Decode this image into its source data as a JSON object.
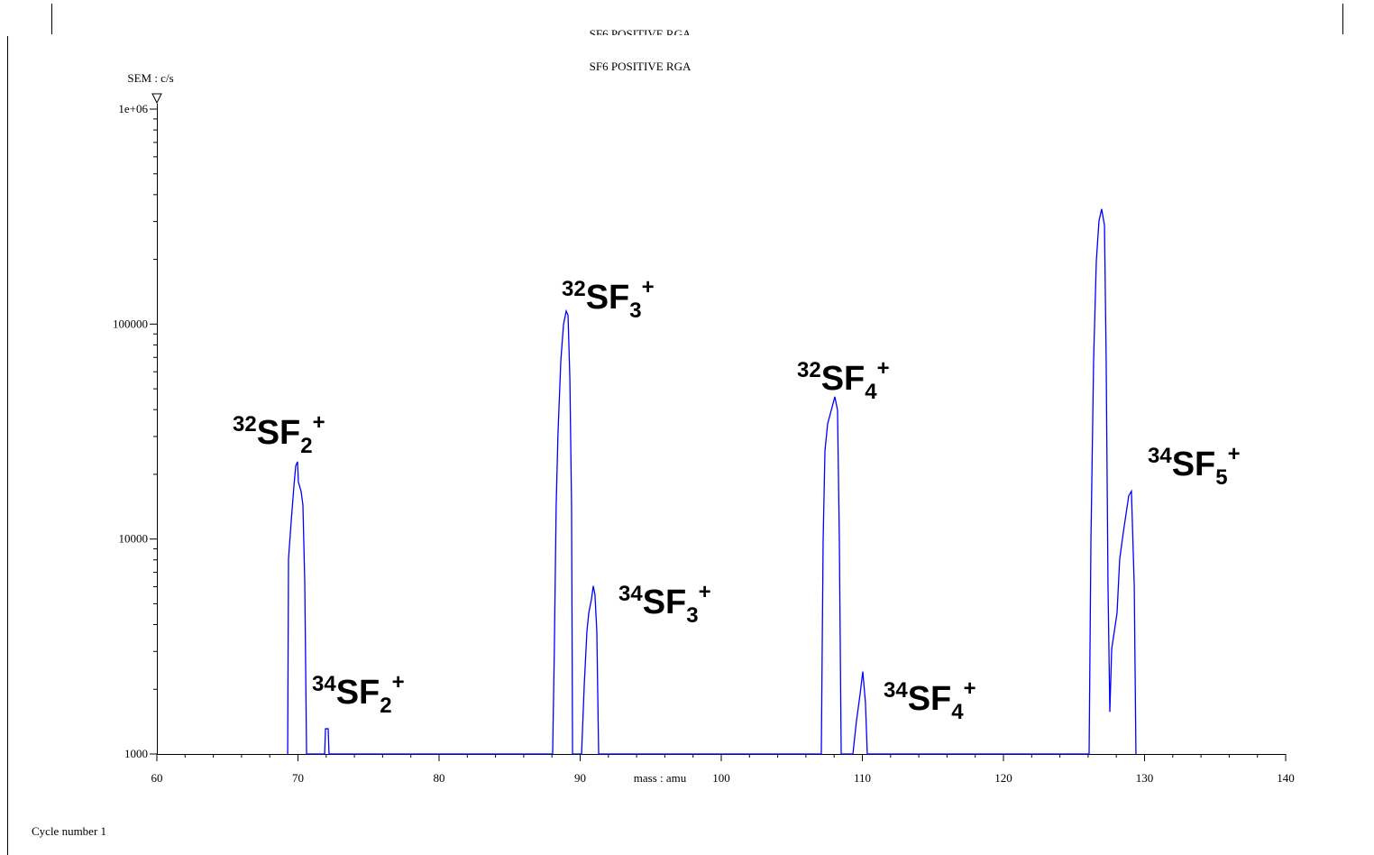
{
  "chart_data": {
    "type": "line",
    "window_title": "SF6 POSITIVE RGA",
    "title": "SF6 POSITIVE RGA",
    "y_label": "SEM : c/s",
    "x_label": "mass : amu",
    "footer": "Cycle number 1",
    "log_y": true,
    "color": "#0000ff",
    "xlim": [
      60,
      140
    ],
    "ylim": [
      1000,
      1000000
    ],
    "xticks": [
      60,
      70,
      80,
      90,
      100,
      110,
      120,
      130,
      140
    ],
    "xminorticks": [
      62,
      64,
      66,
      68,
      72,
      74,
      76,
      78,
      82,
      84,
      86,
      88,
      92,
      94,
      96,
      98,
      102,
      104,
      106,
      108,
      112,
      114,
      116,
      118,
      122,
      124,
      126,
      128,
      132,
      134,
      136,
      138
    ],
    "yticks": [
      1000,
      10000,
      100000,
      {
        "value": 1000000,
        "label": "1e+06"
      }
    ],
    "yminorticks": [
      2000,
      3000,
      4000,
      5000,
      6000,
      7000,
      8000,
      9000,
      20000,
      30000,
      40000,
      50000,
      60000,
      70000,
      80000,
      90000,
      200000,
      300000,
      400000,
      500000,
      600000,
      700000,
      800000,
      900000
    ],
    "x": [
      69.27,
      69.33,
      69.52,
      69.71,
      69.84,
      69.97,
      70.03,
      70.22,
      70.35,
      70.48,
      70.61,
      71.89,
      71.95,
      72.14,
      72.2,
      88.05,
      88.17,
      88.3,
      88.43,
      88.63,
      88.82,
      89.01,
      89.14,
      89.27,
      89.39,
      89.46,
      90.1,
      90.29,
      90.48,
      90.61,
      90.8,
      90.93,
      91.05,
      91.18,
      91.31,
      107.09,
      107.22,
      107.35,
      107.54,
      107.8,
      108.05,
      108.24,
      108.37,
      108.5,
      109.33,
      109.58,
      109.84,
      110.03,
      110.22,
      110.35,
      126.07,
      126.2,
      126.39,
      126.58,
      126.77,
      126.96,
      127.16,
      127.28,
      127.41,
      127.54,
      127.67,
      127.86,
      128.05,
      128.24,
      128.5,
      128.69,
      128.88,
      129.07,
      129.27,
      129.39
    ],
    "values": [
      1000,
      8090,
      12100,
      17500,
      21900,
      22900,
      18400,
      16700,
      14400,
      6350,
      1000,
      1000,
      1310,
      1310,
      1000,
      1000,
      3080,
      14400,
      31200,
      67600,
      99600,
      115000,
      110000,
      55700,
      14400,
      1000,
      1000,
      2100,
      3730,
      4530,
      5240,
      6050,
      5500,
      3730,
      1000,
      1000,
      9820,
      25800,
      34400,
      39800,
      45900,
      39800,
      9820,
      1000,
      1000,
      1420,
      1900,
      2420,
      1730,
      1000,
      1000,
      9820,
      67600,
      195000,
      302000,
      343000,
      288000,
      67600,
      6050,
      1570,
      3080,
      3730,
      4530,
      8090,
      10800,
      13100,
      15900,
      16700,
      6050,
      1000
    ],
    "annotations": [
      {
        "isotope": "32",
        "formula": "SF",
        "subscript": "2",
        "charge": "+"
      },
      {
        "isotope": "34",
        "formula": "SF",
        "subscript": "2",
        "charge": "+"
      },
      {
        "isotope": "32",
        "formula": "SF",
        "subscript": "3",
        "charge": "+"
      },
      {
        "isotope": "34",
        "formula": "SF",
        "subscript": "3",
        "charge": "+"
      },
      {
        "isotope": "32",
        "formula": "SF",
        "subscript": "4",
        "charge": "+"
      },
      {
        "isotope": "34",
        "formula": "SF",
        "subscript": "4",
        "charge": "+"
      },
      {
        "isotope": "34",
        "formula": "SF",
        "subscript": "5",
        "charge": "+"
      }
    ]
  }
}
